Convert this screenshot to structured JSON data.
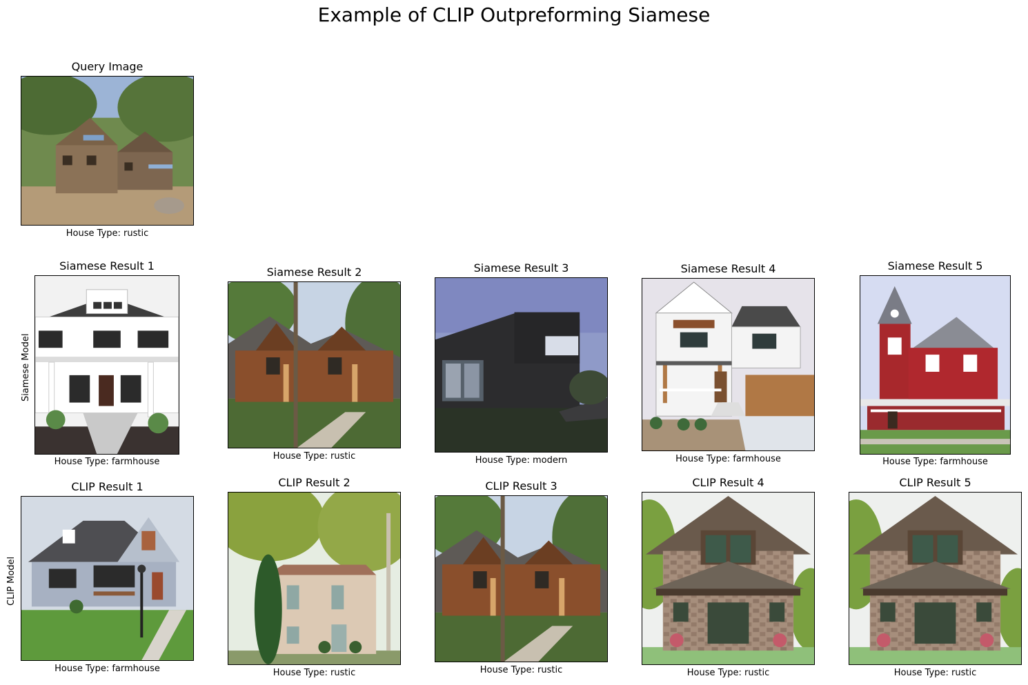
{
  "title": "Example of CLIP Outpreforming Siamese",
  "query": {
    "title": "Query Image",
    "caption": "House Type: rustic",
    "image": "rustic wooden two-story cabin house"
  },
  "row_labels": {
    "siamese": "Siamese Model",
    "clip": "CLIP Model"
  },
  "siamese_results": [
    {
      "title": "Siamese Result 1",
      "caption": "House Type: farmhouse",
      "image": "white farmhouse with porch"
    },
    {
      "title": "Siamese Result 2",
      "caption": "House Type: rustic",
      "image": "rustic wood and stone house with trees"
    },
    {
      "title": "Siamese Result 3",
      "caption": "House Type: modern",
      "image": "black modern box house"
    },
    {
      "title": "Siamese Result 4",
      "caption": "House Type: farmhouse",
      "image": "white farmhouse with wood garage"
    },
    {
      "title": "Siamese Result 5",
      "caption": "House Type: farmhouse",
      "image": "red victorian house with tower"
    }
  ],
  "clip_results": [
    {
      "title": "CLIP Result 1",
      "caption": "House Type: farmhouse",
      "image": "blue-grey farmhouse with lawn"
    },
    {
      "title": "CLIP Result 2",
      "caption": "House Type: rustic",
      "image": "stone cottage among trees"
    },
    {
      "title": "CLIP Result 3",
      "caption": "House Type: rustic",
      "image": "rustic wood and stone house with trees"
    },
    {
      "title": "CLIP Result 4",
      "caption": "House Type: rustic",
      "image": "stone craftsman house with gables"
    },
    {
      "title": "CLIP Result 5",
      "caption": "House Type: rustic",
      "image": "stone craftsman house with gables"
    }
  ]
}
